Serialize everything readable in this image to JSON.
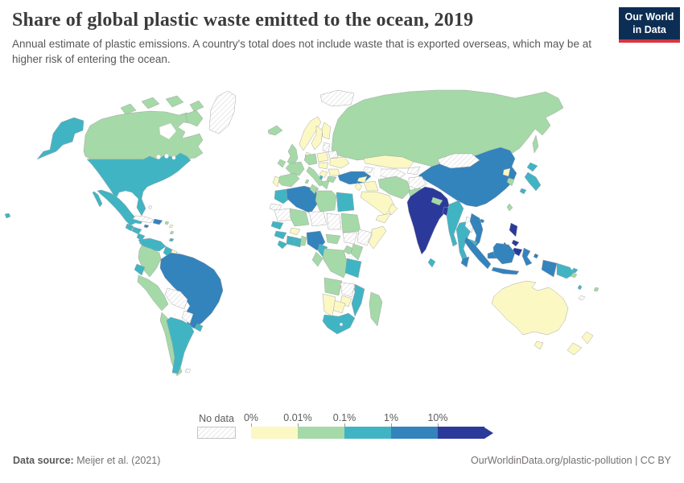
{
  "header": {
    "title": "Share of global plastic waste emitted to the ocean, 2019",
    "subtitle": "Annual estimate of plastic emissions. A country's total does not include waste that is exported overseas, which may be at higher risk of entering the ocean.",
    "logo": {
      "line1": "Our World",
      "line2": "in Data",
      "bg_color": "#0d2e54",
      "accent_color": "#d8353f"
    }
  },
  "legend": {
    "no_data_label": "No data",
    "ticks": [
      "0%",
      "0.01%",
      "0.1%",
      "1%",
      "10%"
    ]
  },
  "footer": {
    "source_label": "Data source:",
    "source_value": " Meijer et al. (2021)",
    "link": "OurWorldinData.org/plastic-pollution | CC BY"
  },
  "chart_data": {
    "type": "heatmap",
    "variant": "choropleth-world-map",
    "title": "Share of global plastic waste emitted to the ocean, 2019",
    "year": 2019,
    "unit": "share of global total (%)",
    "legend_ticks": [
      "0%",
      "0.01%",
      "0.1%",
      "1%",
      "10%"
    ],
    "bins": [
      {
        "range": "0–0.01%",
        "color": "#fbf8c4"
      },
      {
        "range": "0.01–0.1%",
        "color": "#a5d9a8"
      },
      {
        "range": "0.1–1%",
        "color": "#41b4c4"
      },
      {
        "range": "1–10%",
        "color": "#3383bd"
      },
      {
        "range": "≥10%",
        "color": "#2b3a9a"
      },
      {
        "range": "No data",
        "color": "hatch"
      }
    ],
    "countries": {
      "russia": "0.01–0.1%",
      "canada": "0.01–0.1%",
      "greenland": "No data",
      "svalbard": "No data",
      "iceland": "0.01–0.1%",
      "united-states": "0.1–1%",
      "mexico": "0.1–1%",
      "guatemala": "0.1–1%",
      "honduras": "0.1–1%",
      "nicaragua": "0.1–1%",
      "costa-rica": "0.01–0.1%",
      "panama": "0.1–1%",
      "cuba": "No data",
      "jamaica": "1–10%",
      "haiti-dominican-republic": "1–10%",
      "puerto-rico": "0.01–0.1%",
      "bahamas": "No data",
      "caribbean-island-1": "0–0.01%",
      "caribbean-island-2": "0.01–0.1%",
      "trinidad-and-tobago": "0.1–1%",
      "venezuela": "0.1–1%",
      "guyana": "0.1–1%",
      "suriname": "0–0.01%",
      "french-guiana": "No data",
      "colombia": "0.01–0.1%",
      "ecuador": "0.1–1%",
      "peru": "0.01–0.1%",
      "brazil": "1–10%",
      "bolivia": "No data",
      "paraguay": "No data",
      "chile": "0.01–0.1%",
      "argentina": "0.1–1%",
      "uruguay": "0.1–1%",
      "falkland-islands": "No data",
      "united-kingdom": "0.01–0.1%",
      "ireland": "0.01–0.1%",
      "norway": "0–0.01%",
      "sweden": "0–0.01%",
      "finland": "0–0.01%",
      "denmark": "0–0.01%",
      "baltic-states": "No data",
      "belarus": "No data",
      "poland": "0–0.01%",
      "germany": "0.01–0.1%",
      "france": "0.01–0.1%",
      "spain": "0.01–0.1%",
      "portugal": "0–0.01%",
      "italy": "0.01–0.1%",
      "czechia-hungary": "0–0.01%",
      "ukraine": "0–0.01%",
      "romania": "0–0.01%",
      "serbia": "0–0.01%",
      "bulgaria": "0.01–0.1%",
      "greece": "0.01–0.1%",
      "albania": "0.1–1%",
      "turkey": "1–10%",
      "kazakhstan": "0–0.01%",
      "uzbekistan-turkmenistan": "No data",
      "kyrgyzstan-tajikistan": "No data",
      "caucasus": "No data",
      "china": "1–10%",
      "mongolia": "No data",
      "north-korea": "0–0.01%",
      "south-korea": "0.01–0.1%",
      "japan": "0.1–1%",
      "taiwan": "0.01–0.1%",
      "syria": "0–0.01%",
      "iraq": "0–0.01%",
      "jordan": "0–0.01%",
      "saudi-arabia": "0–0.01%",
      "yemen": "0–0.01%",
      "oman": "0–0.01%",
      "iran": "0.01–0.1%",
      "afghanistan": "No data",
      "pakistan": "0.01–0.1%",
      "india": "≥10%",
      "nepal": "0.01–0.1%",
      "bangladesh": "≥10%",
      "sri-lanka": "0.1–1%",
      "myanmar": "0.1–1%",
      "thailand": "0.1–1%",
      "laos": "No data",
      "vietnam": "1–10%",
      "cambodia": "0.1–1%",
      "malaysia": "1–10%",
      "philippines": "≥10%",
      "indonesia": "1–10%",
      "papua-new-guinea": "0.1–1%",
      "solomon-islands": "0.01–0.1%",
      "vanuatu": "0.1–1%",
      "fiji": "0.01–0.1%",
      "new-caledonia": "No data",
      "australia": "0–0.01%",
      "new-zealand": "0–0.01%",
      "morocco": "0.1–1%",
      "western-sahara": "No data",
      "algeria": "1–10%",
      "tunisia": "0.01–0.1%",
      "libya": "0.01–0.1%",
      "egypt": "0.1–1%",
      "mauritania": "No data",
      "mali": "0.01–0.1%",
      "niger": "No data",
      "chad": "No data",
      "sudan": "0.01–0.1%",
      "south-sudan": "No data",
      "ethiopia": "No data",
      "somalia": "0–0.01%",
      "senegal": "0.1–1%",
      "guinea": "0.1–1%",
      "burkina-faso": "0–0.01%",
      "sierra-leone-liberia": "0.1–1%",
      "ivory-coast": "0.1–1%",
      "ghana": "0.1–1%",
      "togo-benin": "0.01–0.1%",
      "nigeria": "1–10%",
      "cameroon": "0.1–1%",
      "central-african-republic": "0.01–0.1%",
      "dr-congo": "0.01–0.1%",
      "gabon-congo": "0.01–0.1%",
      "uganda": "0.01–0.1%",
      "kenya": "0.01–0.1%",
      "tanzania": "0.1–1%",
      "angola": "0.01–0.1%",
      "zambia": "No data",
      "malawi": "0.1–1%",
      "mozambique": "0.1–1%",
      "zimbabwe": "0–0.01%",
      "botswana": "0–0.01%",
      "namibia": "0–0.01%",
      "south-africa": "0.1–1%",
      "madagascar": "0.01–0.1%"
    }
  }
}
